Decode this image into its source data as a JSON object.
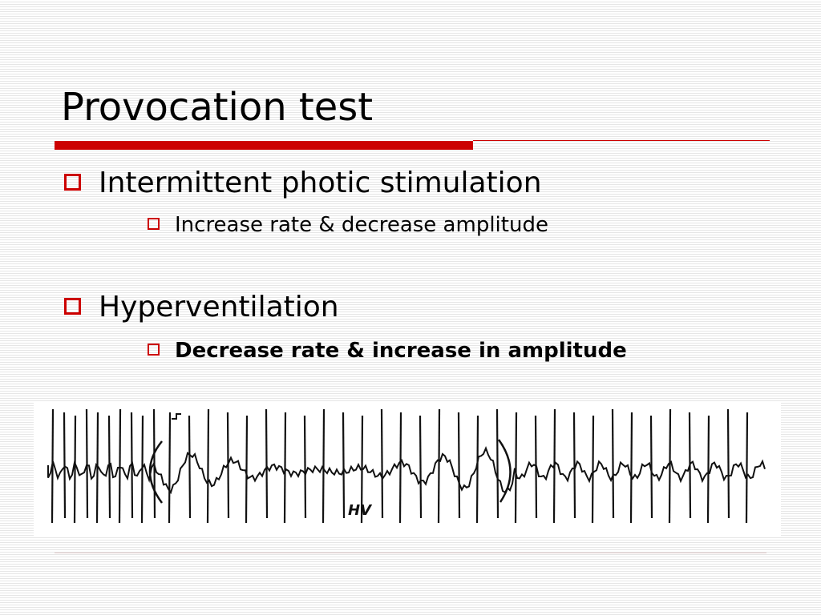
{
  "slide": {
    "title": "Provocation test",
    "bullets": [
      {
        "text": "Intermittent photic stimulation",
        "sub": "Increase rate & decrease amplitude"
      },
      {
        "text": "Hyperventilation",
        "sub": "Decrease rate & increase in amplitude"
      }
    ],
    "eeg_annotation": "HV"
  },
  "colors": {
    "accent": "#cc0000",
    "text": "#000000",
    "background_line": "#e6e6e6"
  },
  "icons": {
    "bullet": "hollow-square-icon"
  }
}
